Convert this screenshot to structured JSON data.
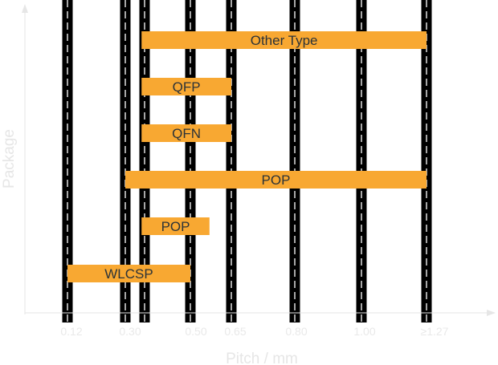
{
  "chart_data": {
    "type": "bar",
    "orientation": "horizontal-range",
    "xlabel": "Pitch / mm",
    "ylabel": "Package",
    "x_ticks": [
      "0.12",
      "0.30",
      "0.50",
      "0.65",
      "0.80",
      "1.00",
      "≥1.27"
    ],
    "grid": true,
    "colors": {
      "bar": "#f8a832",
      "grid_line": "#000000",
      "grid_dash": "#ffffff",
      "axis": "#e6e6e6",
      "bar_text": "#2c3338"
    },
    "bars": [
      {
        "label": "Other Type",
        "start": 0.35,
        "end": 1.27
      },
      {
        "label": "QFP",
        "start": 0.35,
        "end": 0.65
      },
      {
        "label": "QFN",
        "start": 0.35,
        "end": 0.65
      },
      {
        "label": "POP",
        "start": 0.3,
        "end": 1.27
      },
      {
        "label": "POP",
        "start": 0.35,
        "end": 0.57
      },
      {
        "label": "WLCSP",
        "start": 0.12,
        "end": 0.5
      }
    ]
  }
}
